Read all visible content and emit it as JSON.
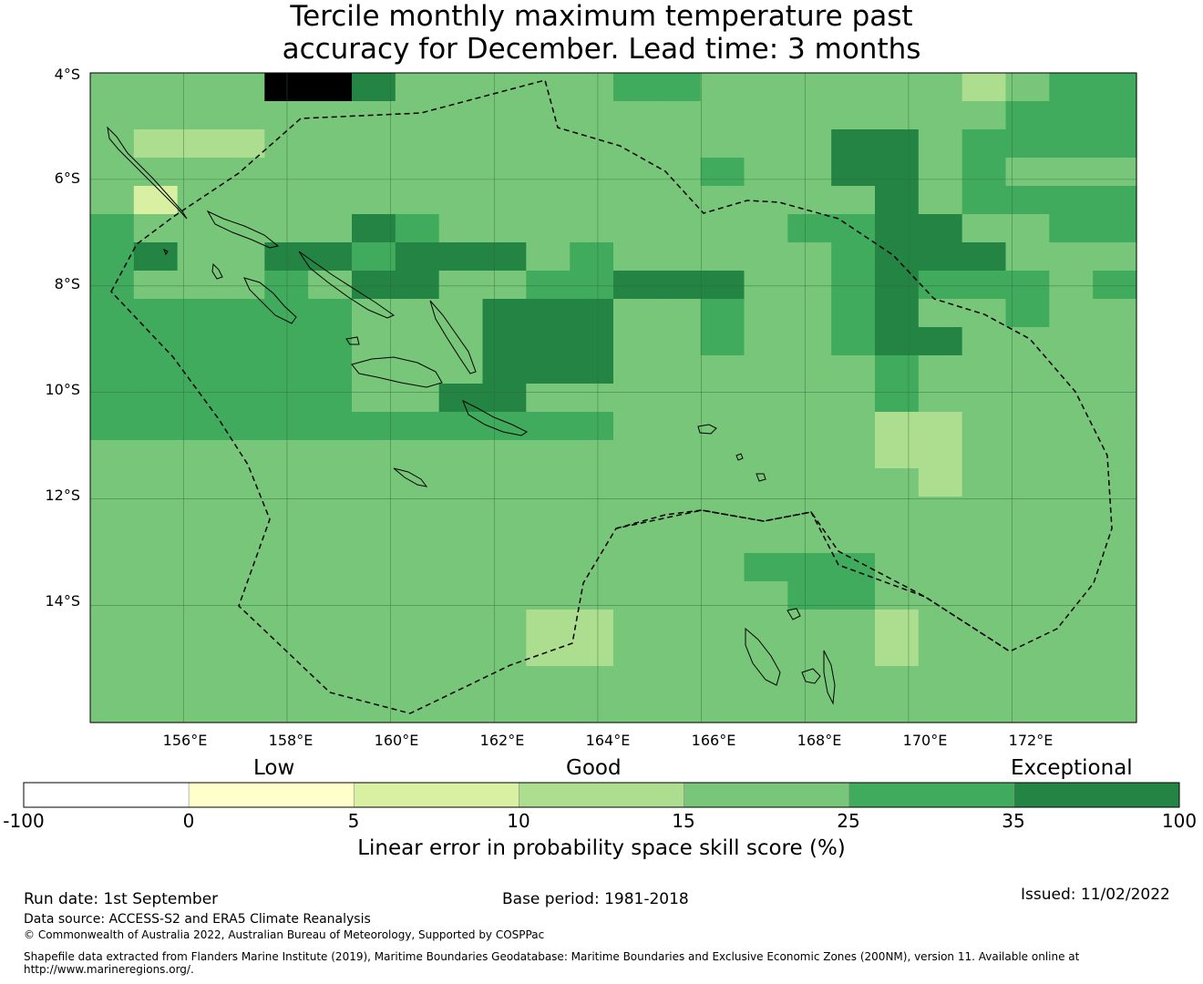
{
  "title": {
    "line1": "Tercile monthly maximum temperature past",
    "line2": "accuracy for December. Lead time: 3 months"
  },
  "map": {
    "lon_range": [
      154.2,
      174.4
    ],
    "lat_range": [
      -16.2,
      -4.0
    ],
    "lat_ticks": [
      "4°S",
      "6°S",
      "8°S",
      "10°S",
      "12°S",
      "14°S"
    ],
    "lon_ticks": [
      "156°E",
      "158°E",
      "160°E",
      "162°E",
      "164°E",
      "166°E",
      "168°E",
      "170°E",
      "172°E"
    ],
    "grid_cols": 24,
    "grid_rows": 23,
    "cell_classes": [
      "444477644444554444443455",
      "444444444444444444444555",
      "433344444444444446645555",
      "444444444444445446645444",
      "424444444444444444645555",
      "544444654444444455664455",
      "564466566645444445666444",
      "544454664455666445655545",
      "555555444666445445644544",
      "555555444666445445664444",
      "555555444666444444544444",
      "555555446644444444544444",
      "555555555555444444334444",
      "444444444444444444334444",
      "444444444444444444434444",
      "444444444444444444444444",
      "444444444444444444444444",
      "444444444444444555444444",
      "444444444444444455444444",
      "444444444433444444344444",
      "444444444433444444344444",
      "444444444444444444444444",
      "444444444444444444444444"
    ]
  },
  "colorbar": {
    "category_labels": [
      "Low",
      "Good",
      "Exceptional"
    ],
    "ticks": [
      "-100",
      "0",
      "5",
      "10",
      "15",
      "25",
      "35",
      "100"
    ],
    "colors": [
      "#ffffff",
      "#ffffcc",
      "#d9f0a3",
      "#addd8e",
      "#78c679",
      "#41ab5d",
      "#238443"
    ],
    "title": "Linear error in probability space skill score (%)"
  },
  "footer": {
    "run_date": "Run date: 1st September",
    "base_period": "Base period: 1981-2018",
    "issued": "Issued: 11/02/2022",
    "data_source": "Data source: ACCESS-S2 and ERA5 Climate Reanalysis",
    "copyright": "© Commonwealth of Australia 2022, Australian Bureau of Meteorology, Supported by COSPPac",
    "shapefile_line1": "Shapefile data extracted from Flanders Marine Institute (2019), Maritime Boundaries Geodatabase: Maritime Boundaries and Exclusive Economic Zones (200NM), version 11. Available online at",
    "shapefile_line2": "http://www.marineregions.org/."
  }
}
